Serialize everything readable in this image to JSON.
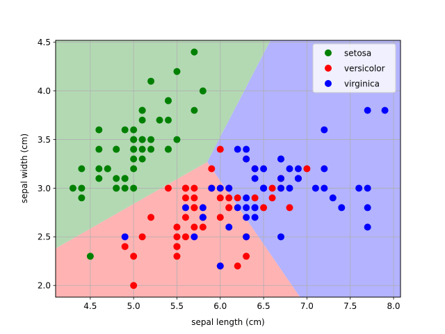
{
  "chart_data": {
    "type": "scatter",
    "title": "",
    "xlabel": "sepal length (cm)",
    "ylabel": "sepal width (cm)",
    "xlim": [
      4.1,
      8.08
    ],
    "ylim": [
      1.88,
      4.52
    ],
    "xticks": [
      "4.5",
      "5.0",
      "5.5",
      "6.0",
      "6.5",
      "7.0",
      "7.5",
      "8.0"
    ],
    "yticks": [
      "2.0",
      "2.5",
      "3.0",
      "3.5",
      "4.0",
      "4.5"
    ],
    "grid": true,
    "legend_position": "top-right",
    "decision_regions": [
      {
        "class": "setosa",
        "color": "#b3d9b3",
        "polygon": [
          [
            4.1,
            2.38
          ],
          [
            4.1,
            4.52
          ],
          [
            6.58,
            4.52
          ],
          [
            5.85,
            3.27
          ]
        ]
      },
      {
        "class": "versicolor",
        "color": "#ffb3b3",
        "polygon": [
          [
            4.1,
            2.38
          ],
          [
            5.85,
            3.27
          ],
          [
            6.92,
            1.88
          ],
          [
            4.1,
            1.88
          ]
        ]
      },
      {
        "class": "virginica",
        "color": "#b3b3ff",
        "polygon": [
          [
            5.85,
            3.27
          ],
          [
            6.58,
            4.52
          ],
          [
            8.08,
            4.52
          ],
          [
            8.08,
            1.88
          ],
          [
            6.92,
            1.88
          ]
        ]
      }
    ],
    "series": [
      {
        "name": "setosa",
        "color": "#008000",
        "points": [
          [
            5.1,
            3.5
          ],
          [
            4.9,
            3.0
          ],
          [
            4.7,
            3.2
          ],
          [
            4.6,
            3.1
          ],
          [
            5.0,
            3.6
          ],
          [
            5.4,
            3.9
          ],
          [
            4.6,
            3.4
          ],
          [
            5.0,
            3.4
          ],
          [
            4.4,
            2.9
          ],
          [
            4.9,
            3.1
          ],
          [
            5.4,
            3.7
          ],
          [
            4.8,
            3.4
          ],
          [
            4.8,
            3.0
          ],
          [
            4.3,
            3.0
          ],
          [
            5.8,
            4.0
          ],
          [
            5.7,
            4.4
          ],
          [
            5.4,
            3.9
          ],
          [
            5.1,
            3.5
          ],
          [
            5.7,
            3.8
          ],
          [
            5.1,
            3.8
          ],
          [
            5.4,
            3.4
          ],
          [
            5.1,
            3.7
          ],
          [
            4.6,
            3.6
          ],
          [
            5.1,
            3.3
          ],
          [
            4.8,
            3.4
          ],
          [
            5.0,
            3.0
          ],
          [
            5.0,
            3.4
          ],
          [
            5.2,
            3.5
          ],
          [
            5.2,
            3.4
          ],
          [
            4.7,
            3.2
          ],
          [
            4.8,
            3.1
          ],
          [
            5.4,
            3.4
          ],
          [
            5.2,
            4.1
          ],
          [
            5.5,
            4.2
          ],
          [
            4.9,
            3.1
          ],
          [
            5.0,
            3.2
          ],
          [
            5.5,
            3.5
          ],
          [
            4.9,
            3.6
          ],
          [
            4.4,
            3.0
          ],
          [
            5.1,
            3.4
          ],
          [
            5.0,
            3.5
          ],
          [
            4.5,
            2.3
          ],
          [
            4.4,
            3.2
          ],
          [
            5.0,
            3.5
          ],
          [
            5.1,
            3.8
          ],
          [
            4.8,
            3.0
          ],
          [
            5.1,
            3.8
          ],
          [
            4.6,
            3.2
          ],
          [
            5.3,
            3.7
          ],
          [
            5.0,
            3.3
          ]
        ]
      },
      {
        "name": "versicolor",
        "color": "#ff0000",
        "points": [
          [
            7.0,
            3.2
          ],
          [
            6.4,
            3.2
          ],
          [
            6.9,
            3.1
          ],
          [
            5.5,
            2.3
          ],
          [
            6.5,
            2.8
          ],
          [
            5.7,
            2.8
          ],
          [
            6.3,
            3.3
          ],
          [
            4.9,
            2.4
          ],
          [
            6.6,
            2.9
          ],
          [
            5.2,
            2.7
          ],
          [
            5.0,
            2.0
          ],
          [
            5.9,
            3.0
          ],
          [
            6.0,
            2.2
          ],
          [
            6.1,
            2.9
          ],
          [
            5.6,
            2.9
          ],
          [
            6.7,
            3.1
          ],
          [
            5.6,
            3.0
          ],
          [
            5.8,
            2.7
          ],
          [
            6.2,
            2.2
          ],
          [
            5.6,
            2.5
          ],
          [
            5.9,
            3.2
          ],
          [
            6.1,
            2.8
          ],
          [
            6.3,
            2.5
          ],
          [
            6.1,
            2.8
          ],
          [
            6.4,
            2.9
          ],
          [
            6.6,
            3.0
          ],
          [
            6.8,
            2.8
          ],
          [
            6.7,
            3.0
          ],
          [
            6.0,
            2.9
          ],
          [
            5.7,
            2.6
          ],
          [
            5.5,
            2.4
          ],
          [
            5.5,
            2.4
          ],
          [
            5.8,
            2.7
          ],
          [
            6.0,
            2.7
          ],
          [
            5.4,
            3.0
          ],
          [
            6.0,
            3.4
          ],
          [
            6.7,
            3.1
          ],
          [
            6.3,
            2.3
          ],
          [
            5.6,
            3.0
          ],
          [
            5.5,
            2.5
          ],
          [
            5.5,
            2.6
          ],
          [
            6.1,
            3.0
          ],
          [
            5.8,
            2.6
          ],
          [
            5.0,
            2.3
          ],
          [
            5.6,
            2.7
          ],
          [
            5.7,
            3.0
          ],
          [
            5.7,
            2.9
          ],
          [
            6.2,
            2.9
          ],
          [
            5.1,
            2.5
          ],
          [
            5.7,
            2.8
          ]
        ]
      },
      {
        "name": "virginica",
        "color": "#0000ff",
        "points": [
          [
            6.3,
            3.3
          ],
          [
            5.8,
            2.7
          ],
          [
            7.1,
            3.0
          ],
          [
            6.3,
            2.9
          ],
          [
            6.5,
            3.0
          ],
          [
            7.6,
            3.0
          ],
          [
            4.9,
            2.5
          ],
          [
            7.3,
            2.9
          ],
          [
            6.7,
            2.5
          ],
          [
            7.2,
            3.6
          ],
          [
            6.5,
            3.2
          ],
          [
            6.4,
            2.7
          ],
          [
            6.8,
            3.0
          ],
          [
            5.7,
            2.5
          ],
          [
            5.8,
            2.8
          ],
          [
            6.4,
            3.2
          ],
          [
            6.5,
            3.0
          ],
          [
            7.7,
            3.8
          ],
          [
            7.7,
            2.6
          ],
          [
            6.0,
            2.2
          ],
          [
            6.9,
            3.2
          ],
          [
            5.6,
            2.8
          ],
          [
            7.7,
            2.8
          ],
          [
            6.3,
            2.7
          ],
          [
            6.7,
            3.3
          ],
          [
            7.2,
            3.2
          ],
          [
            6.2,
            2.8
          ],
          [
            6.1,
            3.0
          ],
          [
            6.4,
            2.8
          ],
          [
            7.2,
            3.0
          ],
          [
            7.4,
            2.8
          ],
          [
            7.9,
            3.8
          ],
          [
            6.4,
            2.8
          ],
          [
            6.3,
            2.8
          ],
          [
            6.1,
            2.6
          ],
          [
            7.7,
            3.0
          ],
          [
            6.3,
            3.4
          ],
          [
            6.4,
            3.1
          ],
          [
            6.0,
            3.0
          ],
          [
            6.9,
            3.1
          ],
          [
            6.7,
            3.1
          ],
          [
            6.9,
            3.1
          ],
          [
            5.8,
            2.7
          ],
          [
            6.8,
            3.2
          ],
          [
            6.7,
            3.3
          ],
          [
            6.7,
            3.0
          ],
          [
            6.3,
            2.5
          ],
          [
            6.5,
            3.0
          ],
          [
            6.2,
            3.4
          ],
          [
            5.9,
            3.0
          ]
        ]
      }
    ]
  }
}
